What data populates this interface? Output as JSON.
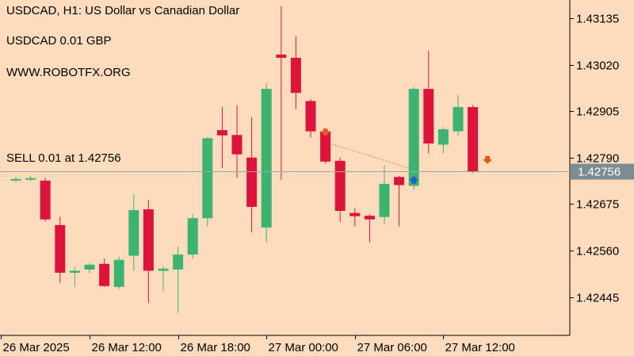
{
  "header": {
    "symbol_line": "USDCAD, H1:  US Dollar vs Canadian Dollar",
    "lot_line": "USDCAD 0.01 GBP",
    "website": "WWW.ROBOTFX.ORG"
  },
  "colors": {
    "background": "#fcdcbc",
    "bull": "#3cb371",
    "bear": "#dc143c",
    "axis": "#000000",
    "price_line": "#9aa7ad",
    "price_tag_bg": "#7d8b92",
    "price_tag_text": "#ffffff",
    "sell_arrow": "#e05a1e",
    "buy_arrow": "#1e63c8",
    "trade_line": "#c98a55"
  },
  "chart_data": {
    "type": "candlestick",
    "title": "USDCAD, H1:  US Dollar vs Canadian Dollar",
    "timeframe": "H1",
    "ylim": [
      1.4235,
      1.4318
    ],
    "y_ticks": [
      "1.43135",
      "1.43020",
      "1.42905",
      "1.42790",
      "1.42675",
      "1.42560",
      "1.42445"
    ],
    "x_tick_labels": [
      "26 Mar 2025",
      "26 Mar 12:00",
      "26 Mar 18:00",
      "27 Mar 00:00",
      "27 Mar 06:00",
      "27 Mar 12:00"
    ],
    "current_price": "1.42756",
    "current_price_value": 1.42756,
    "annotations": {
      "sell_text": "SELL 0.01 at 1.42756"
    },
    "trade_markers": [
      {
        "type": "sell",
        "candle_index": 21,
        "price": 1.4284
      },
      {
        "type": "buy",
        "candle_index": 27,
        "price": 1.42745
      },
      {
        "type": "sell",
        "candle_index": 32,
        "price": 1.42772
      }
    ],
    "candles": [
      {
        "o": 1.42735,
        "h": 1.42743,
        "l": 1.4273,
        "c": 1.42737
      },
      {
        "o": 1.42737,
        "h": 1.42745,
        "l": 1.42732,
        "c": 1.42739
      },
      {
        "o": 1.42733,
        "h": 1.4274,
        "l": 1.42632,
        "c": 1.42637
      },
      {
        "o": 1.42623,
        "h": 1.42643,
        "l": 1.4248,
        "c": 1.42505
      },
      {
        "o": 1.42505,
        "h": 1.4252,
        "l": 1.4247,
        "c": 1.4251
      },
      {
        "o": 1.42513,
        "h": 1.4253,
        "l": 1.42503,
        "c": 1.42525
      },
      {
        "o": 1.42527,
        "h": 1.4254,
        "l": 1.4247,
        "c": 1.42472
      },
      {
        "o": 1.4247,
        "h": 1.42545,
        "l": 1.42465,
        "c": 1.42537
      },
      {
        "o": 1.42547,
        "h": 1.427,
        "l": 1.4251,
        "c": 1.4266
      },
      {
        "o": 1.42662,
        "h": 1.42685,
        "l": 1.4243,
        "c": 1.4251
      },
      {
        "o": 1.4251,
        "h": 1.4252,
        "l": 1.4246,
        "c": 1.42515
      },
      {
        "o": 1.42513,
        "h": 1.4257,
        "l": 1.42405,
        "c": 1.4255
      },
      {
        "o": 1.4255,
        "h": 1.4265,
        "l": 1.4254,
        "c": 1.4264
      },
      {
        "o": 1.4264,
        "h": 1.4284,
        "l": 1.4262,
        "c": 1.42838
      },
      {
        "o": 1.42858,
        "h": 1.42915,
        "l": 1.42764,
        "c": 1.42845
      },
      {
        "o": 1.42846,
        "h": 1.4292,
        "l": 1.4274,
        "c": 1.42798
      },
      {
        "o": 1.4279,
        "h": 1.4289,
        "l": 1.42605,
        "c": 1.42668
      },
      {
        "o": 1.42617,
        "h": 1.42975,
        "l": 1.4258,
        "c": 1.4296
      },
      {
        "o": 1.43045,
        "h": 1.43165,
        "l": 1.42735,
        "c": 1.43037
      },
      {
        "o": 1.43037,
        "h": 1.4309,
        "l": 1.4291,
        "c": 1.4295
      },
      {
        "o": 1.4293,
        "h": 1.42935,
        "l": 1.4284,
        "c": 1.42855
      },
      {
        "o": 1.42855,
        "h": 1.4286,
        "l": 1.42775,
        "c": 1.4278
      },
      {
        "o": 1.42782,
        "h": 1.4279,
        "l": 1.4263,
        "c": 1.42658
      },
      {
        "o": 1.42653,
        "h": 1.42665,
        "l": 1.4262,
        "c": 1.42645
      },
      {
        "o": 1.42646,
        "h": 1.4265,
        "l": 1.4258,
        "c": 1.42637
      },
      {
        "o": 1.42643,
        "h": 1.4277,
        "l": 1.42625,
        "c": 1.42725
      },
      {
        "o": 1.42742,
        "h": 1.42745,
        "l": 1.4262,
        "c": 1.42722
      },
      {
        "o": 1.4272,
        "h": 1.42965,
        "l": 1.4271,
        "c": 1.4296
      },
      {
        "o": 1.4296,
        "h": 1.43055,
        "l": 1.428,
        "c": 1.42825
      },
      {
        "o": 1.42822,
        "h": 1.42865,
        "l": 1.428,
        "c": 1.4286
      },
      {
        "o": 1.42855,
        "h": 1.42945,
        "l": 1.42845,
        "c": 1.42915
      },
      {
        "o": 1.42915,
        "h": 1.4292,
        "l": 1.42752,
        "c": 1.42756
      }
    ]
  }
}
